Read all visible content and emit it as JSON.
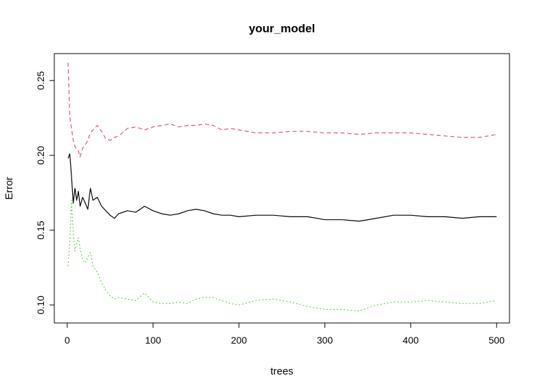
{
  "chart_data": {
    "type": "line",
    "title": "your_model",
    "xlabel": "trees",
    "ylabel": "Error",
    "xlim": [
      -15,
      515
    ],
    "ylim": [
      0.088,
      0.268
    ],
    "x_ticks": [
      0,
      100,
      200,
      300,
      400,
      500
    ],
    "x_tick_labels": [
      "0",
      "100",
      "200",
      "300",
      "400",
      "500"
    ],
    "y_ticks": [
      0.1,
      0.15,
      0.2,
      0.25
    ],
    "y_tick_labels": [
      "0.10",
      "0.15",
      "0.20",
      "0.25"
    ],
    "grid": false,
    "legend": "none",
    "series": [
      {
        "color": "#000000",
        "dash": "solid",
        "x": [
          1,
          3,
          5,
          7,
          9,
          11,
          13,
          15,
          18,
          21,
          24,
          27,
          30,
          35,
          40,
          45,
          50,
          55,
          60,
          70,
          80,
          90,
          100,
          110,
          120,
          130,
          140,
          150,
          160,
          170,
          180,
          190,
          200,
          220,
          240,
          260,
          280,
          300,
          320,
          340,
          360,
          380,
          400,
          420,
          440,
          460,
          480,
          500
        ],
        "y": [
          0.198,
          0.201,
          0.186,
          0.168,
          0.178,
          0.17,
          0.176,
          0.166,
          0.172,
          0.168,
          0.164,
          0.178,
          0.17,
          0.172,
          0.166,
          0.163,
          0.16,
          0.158,
          0.161,
          0.163,
          0.162,
          0.166,
          0.163,
          0.161,
          0.16,
          0.161,
          0.163,
          0.164,
          0.163,
          0.161,
          0.16,
          0.16,
          0.159,
          0.16,
          0.16,
          0.159,
          0.159,
          0.157,
          0.157,
          0.156,
          0.158,
          0.16,
          0.16,
          0.159,
          0.159,
          0.158,
          0.159,
          0.159
        ]
      },
      {
        "color": "#df536b",
        "dash": "dashed",
        "x": [
          1,
          3,
          5,
          7,
          9,
          11,
          13,
          15,
          18,
          21,
          24,
          27,
          30,
          35,
          40,
          45,
          50,
          55,
          60,
          70,
          80,
          90,
          100,
          110,
          120,
          130,
          140,
          150,
          160,
          170,
          180,
          190,
          200,
          220,
          240,
          260,
          280,
          300,
          320,
          340,
          360,
          380,
          400,
          420,
          440,
          460,
          480,
          500
        ],
        "y": [
          0.262,
          0.226,
          0.218,
          0.21,
          0.206,
          0.204,
          0.203,
          0.199,
          0.205,
          0.207,
          0.21,
          0.215,
          0.217,
          0.22,
          0.216,
          0.211,
          0.21,
          0.212,
          0.213,
          0.218,
          0.219,
          0.217,
          0.219,
          0.22,
          0.221,
          0.219,
          0.22,
          0.22,
          0.221,
          0.22,
          0.217,
          0.218,
          0.217,
          0.215,
          0.215,
          0.216,
          0.216,
          0.215,
          0.215,
          0.214,
          0.215,
          0.215,
          0.215,
          0.214,
          0.213,
          0.212,
          0.212,
          0.214
        ]
      },
      {
        "color": "#61d04f",
        "dash": "dotted",
        "x": [
          1,
          3,
          5,
          7,
          9,
          11,
          13,
          15,
          18,
          21,
          24,
          27,
          30,
          35,
          40,
          45,
          50,
          55,
          60,
          70,
          80,
          90,
          100,
          110,
          120,
          130,
          140,
          150,
          160,
          170,
          180,
          190,
          200,
          220,
          240,
          260,
          280,
          300,
          320,
          340,
          360,
          380,
          400,
          420,
          440,
          460,
          480,
          500
        ],
        "y": [
          0.126,
          0.142,
          0.17,
          0.148,
          0.136,
          0.141,
          0.145,
          0.138,
          0.13,
          0.128,
          0.132,
          0.135,
          0.126,
          0.122,
          0.115,
          0.11,
          0.106,
          0.104,
          0.105,
          0.104,
          0.103,
          0.108,
          0.102,
          0.101,
          0.101,
          0.102,
          0.101,
          0.104,
          0.105,
          0.105,
          0.103,
          0.101,
          0.1,
          0.103,
          0.104,
          0.102,
          0.099,
          0.097,
          0.097,
          0.096,
          0.1,
          0.102,
          0.102,
          0.103,
          0.102,
          0.101,
          0.101,
          0.103
        ]
      }
    ]
  }
}
